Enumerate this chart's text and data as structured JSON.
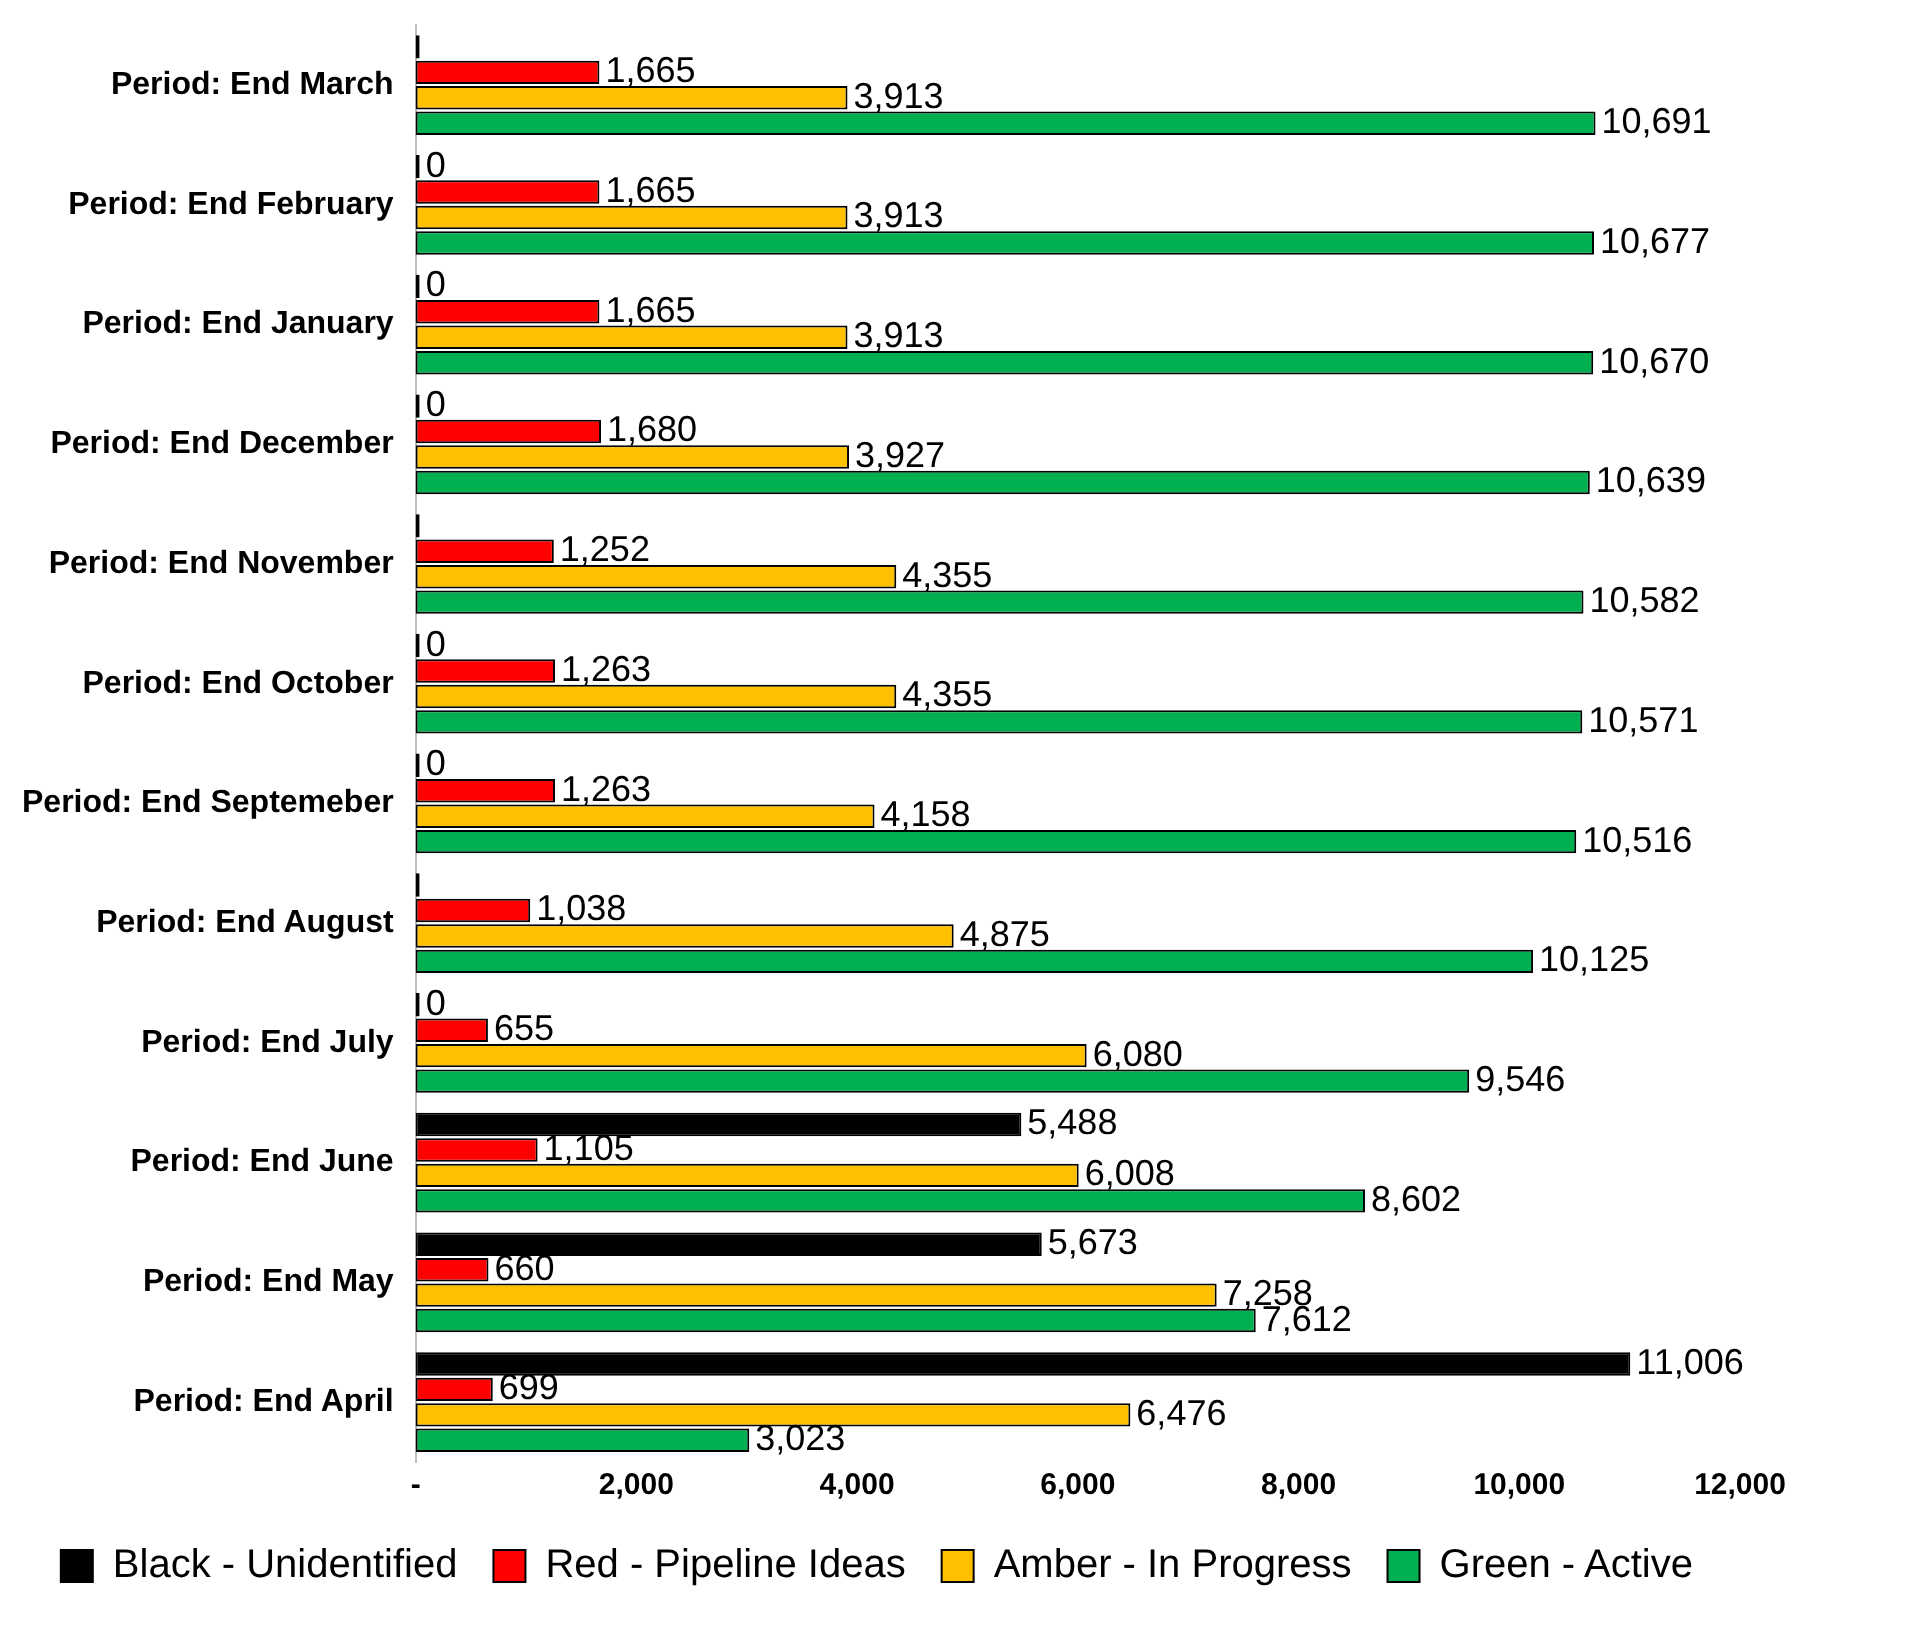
{
  "chart_data": {
    "type": "bar",
    "orientation": "horizontal",
    "categories": [
      "Period: End March",
      "Period: End February",
      "Period: End January",
      "Period: End December",
      "Period: End November",
      "Period: End October",
      "Period: End Septemeber",
      "Period: End August",
      "Period: End July",
      "Period: End June",
      "Period: End May",
      "Period: End April"
    ],
    "series": [
      {
        "name": "Black - Unidentified",
        "color": "#000000",
        "values": [
          0,
          0,
          0,
          0,
          0,
          0,
          0,
          0,
          0,
          5488,
          5673,
          11006
        ],
        "value_labels": [
          null,
          "0",
          "0",
          "0",
          null,
          "0",
          "0",
          null,
          "0",
          "5,488",
          "5,673",
          "11,006"
        ]
      },
      {
        "name": "Red - Pipeline Ideas",
        "color": "#ff0000",
        "values": [
          1665,
          1665,
          1665,
          1680,
          1252,
          1263,
          1263,
          1038,
          655,
          1105,
          660,
          699
        ],
        "value_labels": [
          "1,665",
          "1,665",
          "1,665",
          "1,680",
          "1,252",
          "1,263",
          "1,263",
          "1,038",
          "655",
          "1,105",
          "660",
          "699"
        ]
      },
      {
        "name": "Amber - In Progress",
        "color": "#ffc000",
        "values": [
          3913,
          3913,
          3913,
          3927,
          4355,
          4355,
          4158,
          4875,
          6080,
          6008,
          7258,
          6476
        ],
        "value_labels": [
          "3,913",
          "3,913",
          "3,913",
          "3,927",
          "4,355",
          "4,355",
          "4,158",
          "4,875",
          "6,080",
          "6,008",
          "7,258",
          "6,476"
        ]
      },
      {
        "name": "Green - Active",
        "color": "#00b050",
        "values": [
          10691,
          10677,
          10670,
          10639,
          10582,
          10571,
          10516,
          10125,
          9546,
          8602,
          7612,
          3023
        ],
        "value_labels": [
          "10,691",
          "10,677",
          "10,670",
          "10,639",
          "10,582",
          "10,571",
          "10,516",
          "10,125",
          "9,546",
          "8,602",
          "7,612",
          "3,023"
        ]
      }
    ],
    "xlim": [
      0,
      12000
    ],
    "xticks": [
      {
        "value": 0,
        "label": "-"
      },
      {
        "value": 2000,
        "label": "2,000"
      },
      {
        "value": 4000,
        "label": "4,000"
      },
      {
        "value": 6000,
        "label": "6,000"
      },
      {
        "value": 8000,
        "label": "8,000"
      },
      {
        "value": 10000,
        "label": "10,000"
      },
      {
        "value": 12000,
        "label": "12,000"
      }
    ],
    "grid": false,
    "legend": "bottom"
  }
}
